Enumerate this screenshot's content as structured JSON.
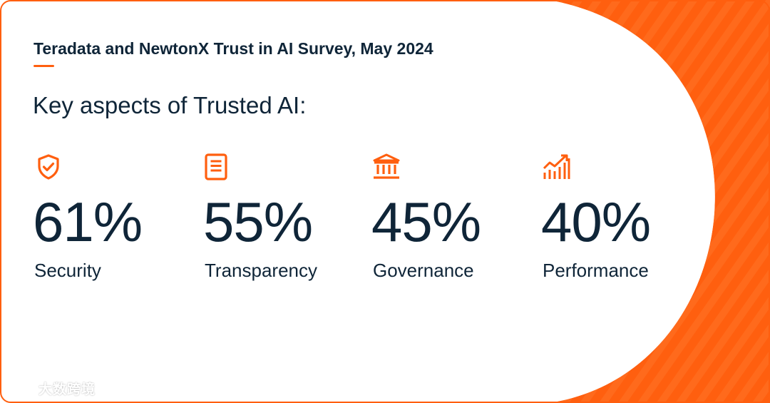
{
  "survey_title": "Teradata and NewtonX Trust in AI Survey, May 2024",
  "heading": "Key aspects of Trusted AI:",
  "stats": [
    {
      "icon": "shield-check-icon",
      "value": "61%",
      "label": "Security"
    },
    {
      "icon": "document-icon",
      "value": "55%",
      "label": "Transparency"
    },
    {
      "icon": "bank-building-icon",
      "value": "45%",
      "label": "Governance"
    },
    {
      "icon": "bar-chart-growth-icon",
      "value": "40%",
      "label": "Performance"
    }
  ],
  "watermark": {
    "text": "大数跨境"
  },
  "colors": {
    "accent": "#ff5f0f",
    "accent_light": "#ff7a2e",
    "text": "#0f2538",
    "background": "#ffffff"
  }
}
